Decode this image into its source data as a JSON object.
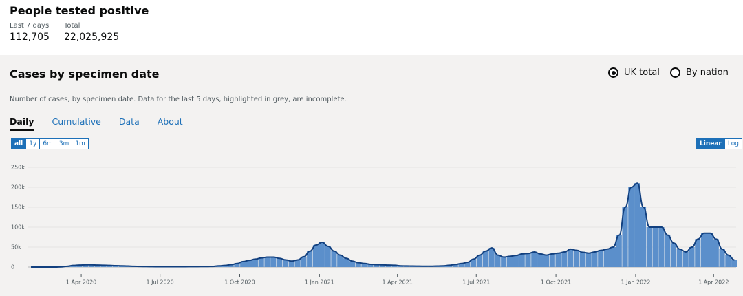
{
  "header": {
    "title": "People tested positive",
    "metrics": [
      {
        "label": "Last 7 days",
        "value": "112,705"
      },
      {
        "label": "Total",
        "value": "22,025,925"
      }
    ]
  },
  "card": {
    "title": "Cases by specimen date",
    "options": [
      "UK total",
      "By nation"
    ],
    "description": "Number of cases, by specimen date. Data for the last 5 days, highlighted in grey, are incomplete.",
    "tabs": [
      "Daily",
      "Cumulative",
      "Data",
      "About"
    ],
    "ranges": [
      "all",
      "1y",
      "6m",
      "3m",
      "1m"
    ],
    "scales": [
      "Linear",
      "Log"
    ]
  },
  "chart_data": {
    "type": "bar",
    "bar_color": "#5b8fcb",
    "line_color": "#12407f",
    "grid": true,
    "x": [
      "2020-02-03",
      "2020-02-10",
      "2020-02-17",
      "2020-02-24",
      "2020-03-02",
      "2020-03-09",
      "2020-03-16",
      "2020-03-23",
      "2020-03-30",
      "2020-04-06",
      "2020-04-13",
      "2020-04-20",
      "2020-04-27",
      "2020-05-04",
      "2020-05-11",
      "2020-05-18",
      "2020-05-25",
      "2020-06-01",
      "2020-06-08",
      "2020-06-15",
      "2020-06-22",
      "2020-06-29",
      "2020-07-06",
      "2020-07-13",
      "2020-07-20",
      "2020-07-27",
      "2020-08-03",
      "2020-08-10",
      "2020-08-17",
      "2020-08-24",
      "2020-08-31",
      "2020-09-07",
      "2020-09-14",
      "2020-09-21",
      "2020-09-28",
      "2020-10-05",
      "2020-10-12",
      "2020-10-19",
      "2020-10-26",
      "2020-11-02",
      "2020-11-09",
      "2020-11-16",
      "2020-11-23",
      "2020-11-30",
      "2020-12-07",
      "2020-12-14",
      "2020-12-21",
      "2020-12-28",
      "2021-01-04",
      "2021-01-11",
      "2021-01-18",
      "2021-01-25",
      "2021-02-01",
      "2021-02-08",
      "2021-02-15",
      "2021-02-22",
      "2021-03-01",
      "2021-03-08",
      "2021-03-15",
      "2021-03-22",
      "2021-03-29",
      "2021-04-05",
      "2021-04-12",
      "2021-04-19",
      "2021-04-26",
      "2021-05-03",
      "2021-05-10",
      "2021-05-17",
      "2021-05-24",
      "2021-05-31",
      "2021-06-07",
      "2021-06-14",
      "2021-06-21",
      "2021-06-28",
      "2021-07-05",
      "2021-07-12",
      "2021-07-19",
      "2021-07-26",
      "2021-08-02",
      "2021-08-09",
      "2021-08-16",
      "2021-08-23",
      "2021-08-30",
      "2021-09-06",
      "2021-09-13",
      "2021-09-20",
      "2021-09-27",
      "2021-10-04",
      "2021-10-11",
      "2021-10-18",
      "2021-10-25",
      "2021-11-01",
      "2021-11-08",
      "2021-11-15",
      "2021-11-22",
      "2021-11-29",
      "2021-12-06",
      "2021-12-13",
      "2021-12-20",
      "2021-12-27",
      "2022-01-03",
      "2022-01-10",
      "2022-01-17",
      "2022-01-24",
      "2022-01-31",
      "2022-02-07",
      "2022-02-14",
      "2022-02-21",
      "2022-02-28",
      "2022-03-07",
      "2022-03-14",
      "2022-03-21",
      "2022-03-28",
      "2022-04-04",
      "2022-04-11",
      "2022-04-18",
      "2022-04-25"
    ],
    "values": [
      0,
      0,
      0,
      0,
      100,
      500,
      2000,
      4000,
      5000,
      5500,
      5500,
      5000,
      4500,
      4000,
      3500,
      3000,
      2500,
      2000,
      1500,
      1200,
      1000,
      900,
      800,
      800,
      800,
      900,
      1000,
      1100,
      1200,
      1300,
      1600,
      3000,
      4000,
      6000,
      9000,
      14000,
      17000,
      20000,
      23000,
      25000,
      25000,
      22000,
      18000,
      15000,
      18000,
      26000,
      40000,
      55000,
      62000,
      52000,
      40000,
      30000,
      22000,
      15000,
      11000,
      9000,
      7000,
      6000,
      5500,
      5000,
      4500,
      3000,
      2800,
      2500,
      2300,
      2200,
      2200,
      2500,
      3000,
      4500,
      6500,
      9000,
      12000,
      20000,
      30000,
      40000,
      48000,
      30000,
      25000,
      27000,
      29000,
      33000,
      34000,
      38000,
      33000,
      30000,
      33000,
      35000,
      38000,
      45000,
      42000,
      37000,
      35000,
      38000,
      42000,
      45000,
      50000,
      80000,
      150000,
      200000,
      210000,
      150000,
      100000,
      100000,
      100000,
      80000,
      60000,
      45000,
      38000,
      50000,
      70000,
      85000,
      85000,
      70000,
      45000,
      30000,
      18000
    ],
    "xlim": [
      "2020-01-30",
      "2022-04-27"
    ],
    "xticks": [
      {
        "value": "2020-04-01",
        "label": "1 Apr 2020"
      },
      {
        "value": "2020-07-01",
        "label": "1 Jul 2020"
      },
      {
        "value": "2020-10-01",
        "label": "1 Oct 2020"
      },
      {
        "value": "2021-01-01",
        "label": "1 Jan 2021"
      },
      {
        "value": "2021-04-01",
        "label": "1 Apr 2021"
      },
      {
        "value": "2021-07-01",
        "label": "1 Jul 2021"
      },
      {
        "value": "2021-10-01",
        "label": "1 Oct 2021"
      },
      {
        "value": "2022-01-01",
        "label": "1 Jan 2022"
      },
      {
        "value": "2022-04-01",
        "label": "1 Apr 2022"
      }
    ],
    "ylim": [
      0,
      270000
    ],
    "yticks": [
      0,
      {
        "value": 50000,
        "label": "50k"
      },
      {
        "value": 100000,
        "label": "100k"
      },
      {
        "value": 150000,
        "label": "150k"
      },
      {
        "value": 200000,
        "label": "200k"
      },
      {
        "value": 250000,
        "label": "250k"
      }
    ]
  }
}
